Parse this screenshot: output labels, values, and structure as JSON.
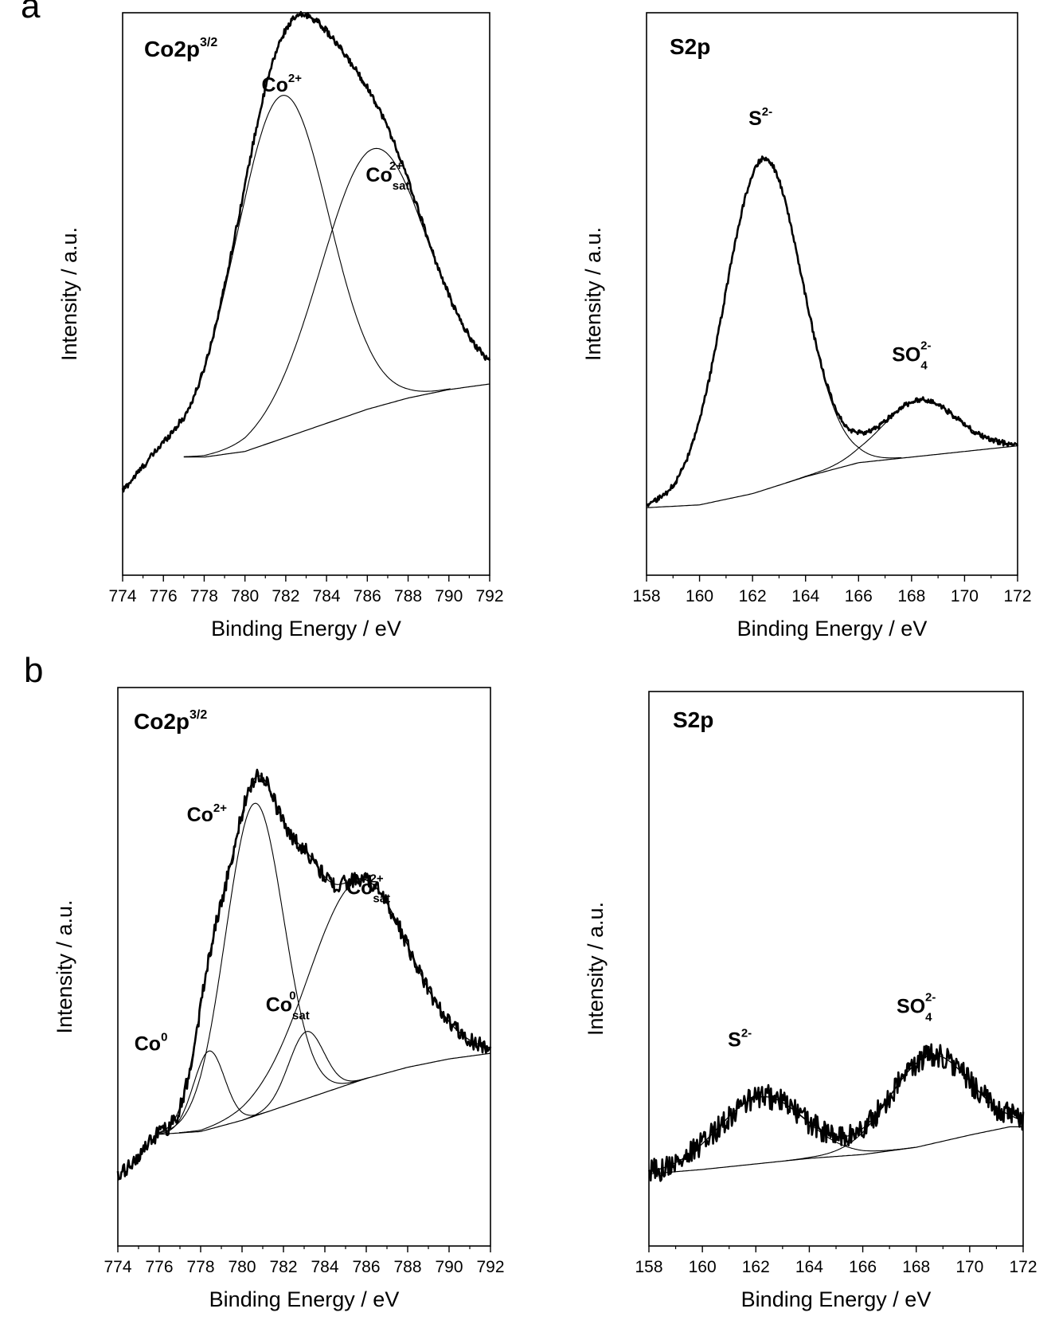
{
  "panel_labels": [
    "a",
    "b"
  ],
  "chart_data": [
    {
      "type": "line",
      "panel": "a",
      "title": "Co2p",
      "title_sup": "3/2",
      "xlabel": "Binding Energy / eV",
      "ylabel": "Intensity / a.u.",
      "xlim": [
        774,
        792
      ],
      "ylim": [
        0,
        1
      ],
      "xticks": [
        774,
        776,
        778,
        780,
        782,
        784,
        786,
        788,
        790,
        792
      ],
      "grid": false,
      "annotations": [
        {
          "base": "Co",
          "sup": "2+",
          "sub": "",
          "x": 781.8,
          "y": 0.86
        },
        {
          "base": "Co",
          "sup": "2+",
          "sub": "sat",
          "x": 787.0,
          "y": 0.7
        }
      ],
      "baseline": {
        "name": "baseline",
        "x": [
          777,
          778,
          780,
          782,
          784,
          786,
          788,
          790,
          792
        ],
        "y": [
          0.21,
          0.21,
          0.22,
          0.245,
          0.27,
          0.295,
          0.315,
          0.33,
          0.34
        ]
      },
      "peaks": [
        {
          "name": "Co2+",
          "center": 781.8,
          "height": 0.61,
          "width": 2.3
        },
        {
          "name": "Co2+ sat",
          "center": 786.3,
          "height": 0.46,
          "width": 2.6
        }
      ],
      "noise": 0.006,
      "raw_start": {
        "x": 774.0,
        "y": 0.15
      }
    },
    {
      "type": "line",
      "panel": "a",
      "title": "S2p",
      "title_sup": "",
      "xlabel": "Binding Energy / eV",
      "ylabel": "Intensity / a.u.",
      "xlim": [
        158,
        172
      ],
      "ylim": [
        0,
        1
      ],
      "xticks": [
        158,
        160,
        162,
        164,
        166,
        168,
        170,
        172
      ],
      "grid": false,
      "annotations": [
        {
          "base": "S",
          "sup": "2-",
          "sub": "",
          "x": 162.3,
          "y": 0.8
        },
        {
          "base": "SO",
          "sup": "2-",
          "sub": "4",
          "x": 168.0,
          "y": 0.38
        }
      ],
      "baseline": {
        "name": "baseline",
        "x": [
          158,
          160,
          162,
          164,
          166,
          168,
          170,
          172
        ],
        "y": [
          0.12,
          0.125,
          0.145,
          0.175,
          0.2,
          0.21,
          0.22,
          0.23
        ]
      },
      "peaks": [
        {
          "name": "S2-",
          "center": 162.4,
          "height": 0.59,
          "width": 1.45
        },
        {
          "name": "SO4 2-",
          "center": 168.3,
          "height": 0.1,
          "width": 1.4
        }
      ],
      "noise": 0.005,
      "raw_start": {
        "x": 158.0,
        "y": 0.12
      }
    },
    {
      "type": "line",
      "panel": "b",
      "title": "Co2p",
      "title_sup": "3/2",
      "xlabel": "Binding Energy / eV",
      "ylabel": "Intensity / a.u.",
      "xlim": [
        774,
        792
      ],
      "ylim": [
        0,
        1
      ],
      "xticks": [
        774,
        776,
        778,
        780,
        782,
        784,
        786,
        788,
        790,
        792
      ],
      "grid": false,
      "annotations": [
        {
          "base": "Co",
          "sup": "2+",
          "sub": "",
          "x": 778.3,
          "y": 0.76
        },
        {
          "base": "Co",
          "sup": "2+",
          "sub": "sat",
          "x": 786.1,
          "y": 0.63
        },
        {
          "base": "Co",
          "sup": "0",
          "sub": "sat",
          "x": 782.2,
          "y": 0.42
        },
        {
          "base": "Co",
          "sup": "0",
          "sub": "",
          "x": 775.6,
          "y": 0.35
        }
      ],
      "baseline": {
        "name": "baseline",
        "x": [
          776,
          778,
          780,
          782,
          784,
          786,
          788,
          790,
          792
        ],
        "y": [
          0.2,
          0.205,
          0.225,
          0.25,
          0.275,
          0.3,
          0.32,
          0.335,
          0.345
        ]
      },
      "peaks": [
        {
          "name": "Co2+",
          "center": 780.6,
          "height": 0.56,
          "width": 1.4
        },
        {
          "name": "Co2+ sat",
          "center": 785.6,
          "height": 0.36,
          "width": 2.4
        },
        {
          "name": "Co0",
          "center": 778.4,
          "height": 0.14,
          "width": 0.75
        },
        {
          "name": "Co0 sat",
          "center": 783.1,
          "height": 0.12,
          "width": 0.85
        }
      ],
      "noise": 0.014,
      "raw_start": {
        "x": 774.0,
        "y": 0.12
      }
    },
    {
      "type": "line",
      "panel": "b",
      "title": "S2p",
      "title_sup": "",
      "xlabel": "Binding Energy / eV",
      "ylabel": "Intensity / a.u.",
      "xlim": [
        158,
        172
      ],
      "ylim": [
        0,
        1
      ],
      "xticks": [
        158,
        160,
        162,
        164,
        166,
        168,
        170,
        172
      ],
      "grid": false,
      "annotations": [
        {
          "base": "S",
          "sup": "2-",
          "sub": "",
          "x": 161.4,
          "y": 0.36
        },
        {
          "base": "SO",
          "sup": "2-",
          "sub": "4",
          "x": 168.0,
          "y": 0.42
        }
      ],
      "baseline": {
        "name": "baseline",
        "x": [
          158,
          160,
          162,
          164,
          166,
          168,
          170,
          171.5,
          172
        ],
        "y": [
          0.13,
          0.138,
          0.148,
          0.158,
          0.165,
          0.178,
          0.2,
          0.215,
          0.215
        ]
      },
      "peaks": [
        {
          "name": "S2-",
          "center": 162.2,
          "height": 0.12,
          "width": 1.6
        },
        {
          "name": "SO4 2-",
          "center": 168.5,
          "height": 0.16,
          "width": 1.5
        }
      ],
      "noise": 0.022,
      "raw_start": {
        "x": 158.0,
        "y": 0.15
      }
    }
  ]
}
